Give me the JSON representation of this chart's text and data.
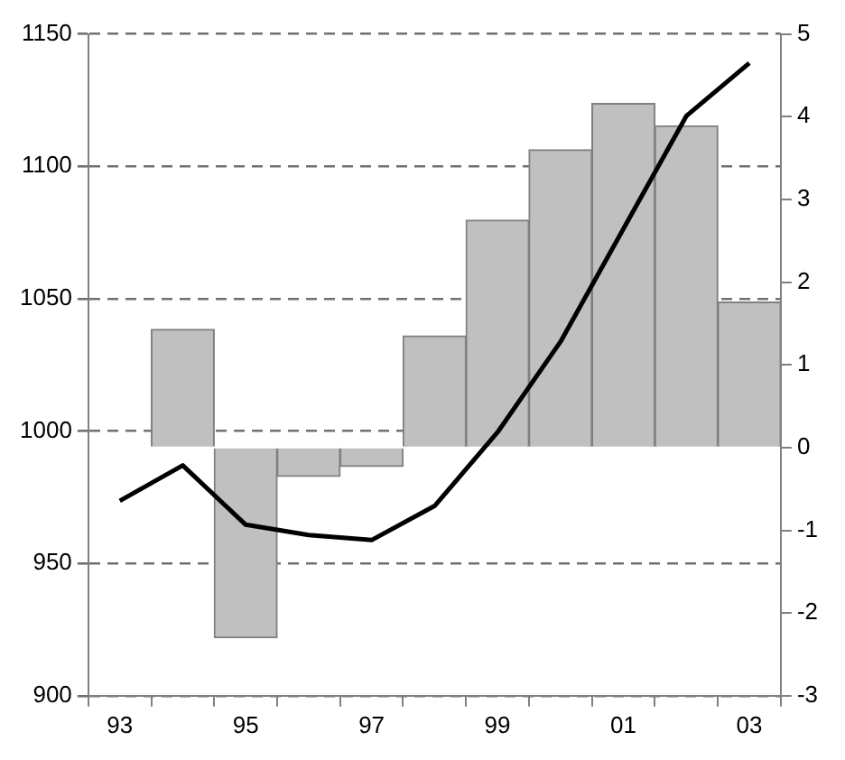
{
  "chart_data": {
    "type": "bar",
    "categories": [
      "93",
      null,
      "95",
      null,
      "97",
      null,
      "99",
      null,
      "01",
      null,
      "03"
    ],
    "series": [
      {
        "axis": "y2",
        "color": "#c0c0c0",
        "values": [
          null,
          1.43,
          -2.3,
          -0.35,
          -0.23,
          1.35,
          2.75,
          3.6,
          4.16,
          3.89,
          1.76
        ]
      },
      {
        "type": "line",
        "axis": "y",
        "color": "#000000",
        "values": [
          973.6,
          987,
          964.6,
          960.7,
          958.8,
          971.7,
          999.5,
          1033.7,
          1076.4,
          1119,
          1139
        ]
      }
    ],
    "ylim": [
      900,
      1150
    ],
    "yticks": [
      900,
      950,
      1000,
      1050,
      1100,
      1150
    ],
    "y2lim": [
      -3,
      5
    ],
    "y2ticks": [
      -3,
      -2,
      -1,
      0,
      1,
      2,
      3,
      4,
      5
    ],
    "grid": "y",
    "marker": "none",
    "line_style": "solid",
    "legend": false
  }
}
